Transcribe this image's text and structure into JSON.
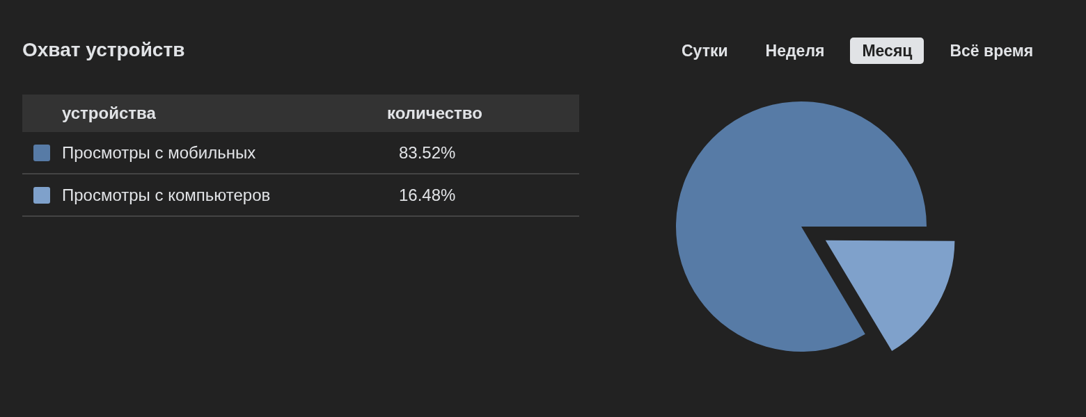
{
  "chart_data": {
    "type": "pie",
    "title": "Охват устройств",
    "categories": [
      "Просмотры с мобильных",
      "Просмотры с компьютеров"
    ],
    "values": [
      83.52,
      16.48
    ],
    "colors": [
      "#577ba6",
      "#7fa1cb"
    ],
    "value_labels": [
      "83.52%",
      "16.48%"
    ],
    "legend": "left",
    "legend_title": "устройства",
    "annotations": [
      "Сутки",
      "Неделя",
      "Месяц",
      "Всё время",
      "количество"
    ]
  }
}
